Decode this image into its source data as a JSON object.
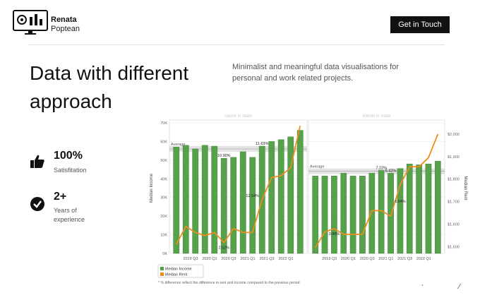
{
  "header": {
    "brand_name": "Renata",
    "brand_sub": "Poptean",
    "cta_label": "Get in Touch"
  },
  "hero": {
    "title": "Data with different approach",
    "description": "Minimalist and meaningful data visualisations for personal and work related projects."
  },
  "stats": [
    {
      "value": "100%",
      "label": "Satisfitation",
      "icon": "thumbs-up-icon"
    },
    {
      "value": "2+",
      "label": "Years of experience",
      "icon": "check-circle-icon"
    }
  ],
  "colors": {
    "bar": "#56a24a",
    "line": "#f08c1c",
    "band": "#d0d0d0",
    "accent": "#111111"
  },
  "chart_data": [
    {
      "type": "bar",
      "title": "Sector in State",
      "ylabel": "Median Income",
      "ylim": [
        0,
        70000
      ],
      "y_ticks": [
        "0K",
        "10K",
        "20K",
        "30K",
        "40K",
        "50K",
        "60K",
        "70K"
      ],
      "x_tick_labels": [
        "2019 Q3",
        "2020 Q1",
        "2020 Q3",
        "2021 Q1",
        "2021 Q3",
        "2022 Q1"
      ],
      "average_label": "Average",
      "average_value": 56000,
      "series": [
        {
          "name": "Median Income",
          "values": [
            57000,
            58000,
            56000,
            58000,
            57500,
            51000,
            51500,
            54500,
            51500,
            57500,
            60000,
            61000,
            62500,
            66000
          ]
        },
        {
          "name": "Median Rent",
          "values": [
            1495,
            1585,
            1555,
            1540,
            1555,
            1505,
            1575,
            1555,
            1555,
            1720,
            1830,
            1840,
            1880,
            2090
          ]
        }
      ],
      "rent_range": [
        1450,
        2105
      ],
      "annotations": [
        {
          "text": "11.63%",
          "index": 9,
          "series": "income"
        },
        {
          "text": "10.90%",
          "index": 5,
          "series": "income"
        },
        {
          "text": "12.54%",
          "index": 8,
          "series": "income-mid"
        },
        {
          "text": "2.52%",
          "index": 5,
          "series": "rent"
        }
      ]
    },
    {
      "type": "bar",
      "title": "Renter in State",
      "ylabel": "Median Rent",
      "ylim": [
        0,
        70000
      ],
      "y_right_ticks": [
        "$1,500",
        "$1,600",
        "$1,700",
        "$1,800",
        "$1,900",
        "$2,000"
      ],
      "rent_range": [
        1470,
        2050
      ],
      "x_tick_labels": [
        "2019 Q3",
        "2020 Q1",
        "2020 Q3",
        "2021 Q1",
        "2021 Q3",
        "2022 Q1"
      ],
      "average_label": "Average",
      "average_value": 44000,
      "series": [
        {
          "name": "Median Income",
          "values": [
            41500,
            41500,
            41500,
            43000,
            41500,
            41500,
            43000,
            44500,
            43000,
            45500,
            48000,
            47500,
            48000,
            49500
          ]
        },
        {
          "name": "Median Rent",
          "values": [
            1495,
            1565,
            1580,
            1555,
            1555,
            1555,
            1660,
            1660,
            1635,
            1775,
            1855,
            1855,
            1895,
            2000
          ]
        }
      ],
      "annotations": [
        {
          "text": "7.22%",
          "index": 7,
          "series": "income"
        },
        {
          "text": "6.42%",
          "index": 8,
          "series": "income"
        },
        {
          "text": "6.94%",
          "index": 9,
          "series": "income-mid"
        },
        {
          "text": "3.96%",
          "index": 2,
          "series": "rent"
        }
      ]
    }
  ],
  "legend": {
    "items": [
      "Median Income",
      "Median Rent"
    ],
    "note": "* % difference reflect the difference in rent and income compared to the previous period"
  }
}
